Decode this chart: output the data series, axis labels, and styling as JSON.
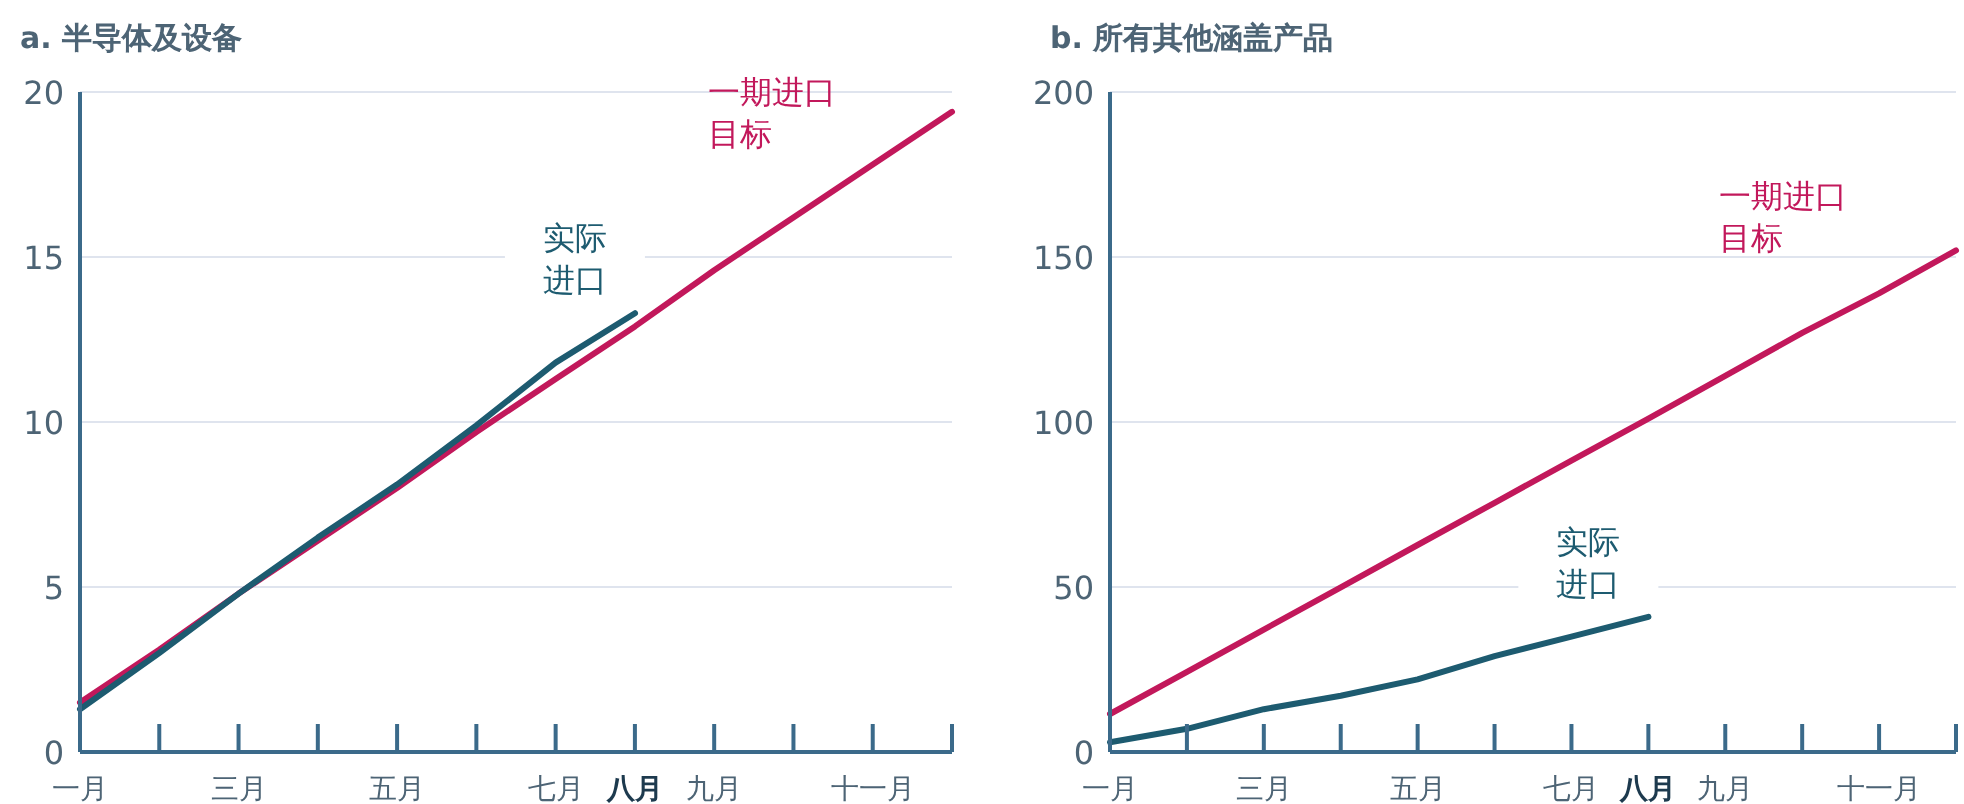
{
  "chart_data": [
    {
      "type": "line",
      "title": "a. 半导体及设备",
      "categories": [
        "一月",
        null,
        "三月",
        null,
        "五月",
        null,
        "七月",
        "八月",
        "九月",
        null,
        "十一月",
        null
      ],
      "ylim": [
        0,
        20
      ],
      "yticks": [
        0,
        5,
        10,
        15,
        20
      ],
      "grid": "y",
      "series": [
        {
          "name": "一期进口目标",
          "color": "#c2185b",
          "values": [
            1.5,
            3.1,
            4.8,
            6.4,
            8.0,
            9.7,
            11.3,
            12.9,
            14.6,
            16.2,
            17.8,
            19.4
          ]
        },
        {
          "name": "实际进口",
          "color": "#1d5b70",
          "values": [
            1.3,
            3.0,
            4.8,
            6.5,
            8.1,
            9.9,
            11.8,
            13.3,
            null,
            null,
            null,
            null
          ]
        }
      ]
    },
    {
      "type": "line",
      "title": "b. 所有其他涵盖产品",
      "categories": [
        "一月",
        null,
        "三月",
        null,
        "五月",
        null,
        "七月",
        "八月",
        "九月",
        null,
        "十一月",
        null
      ],
      "ylim": [
        0,
        200
      ],
      "yticks": [
        0,
        50,
        100,
        150,
        200
      ],
      "grid": "y",
      "series": [
        {
          "name": "一期进口目标",
          "color": "#c2185b",
          "values": [
            11.5,
            24.3,
            37.1,
            49.9,
            62.7,
            75.5,
            88.3,
            101,
            114,
            127,
            139,
            152
          ]
        },
        {
          "name": "实际进口",
          "color": "#1d5b70",
          "values": [
            3,
            7,
            13,
            17,
            22,
            29,
            35,
            41,
            null,
            null,
            null,
            null
          ]
        }
      ]
    }
  ]
}
